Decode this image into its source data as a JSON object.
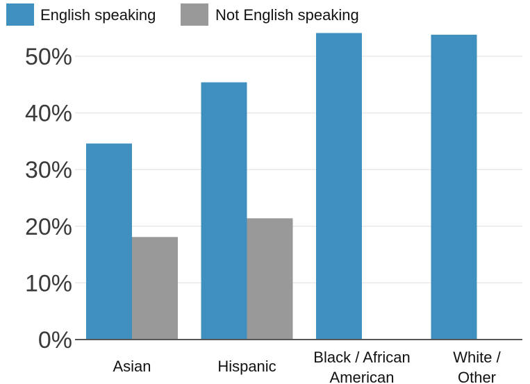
{
  "chart_data": {
    "type": "bar",
    "title": "",
    "xlabel": "",
    "ylabel": "",
    "categories": [
      [
        "Asian"
      ],
      [
        "Hispanic"
      ],
      [
        "Black / African",
        "American"
      ],
      [
        "White /",
        "Other"
      ]
    ],
    "series": [
      {
        "name": "English speaking",
        "color": "#3f8fbf",
        "values": [
          34.6,
          45.4,
          54.1,
          53.8
        ]
      },
      {
        "name": "Not English speaking",
        "color": "#999999",
        "values": [
          18.1,
          21.4,
          null,
          null
        ]
      }
    ],
    "ylim": [
      0,
      54
    ],
    "yticks": [
      0,
      10,
      20,
      30,
      40,
      50
    ],
    "ytick_labels": [
      "0%",
      "10%",
      "20%",
      "30%",
      "40%",
      "50%"
    ],
    "grid": true,
    "legend": "top-left"
  }
}
